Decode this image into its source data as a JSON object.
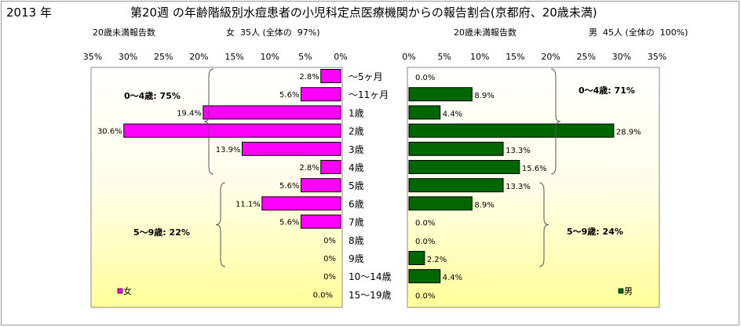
{
  "header": {
    "year_label": "2013 年",
    "title": "第20週 の年齢階級別水痘患者の小児科定点医療機関からの報告割合(京都府、20歳未満)"
  },
  "chart_data": [
    {
      "type": "bar",
      "panel": "female",
      "orientation": "horizontal",
      "direction": "right-to-left",
      "series_label": "20歳未満報告数",
      "summary": "女  35人 (全体の  97%)",
      "legend": "女",
      "color": "#ff00ff",
      "xlim": [
        0,
        35
      ],
      "ticks": [
        "35%",
        "30%",
        "25%",
        "20%",
        "15%",
        "10%",
        "5%",
        "0%"
      ],
      "tick_values": [
        35,
        30,
        25,
        20,
        15,
        10,
        5,
        0
      ],
      "categories": [
        "～5ヶ月",
        "～11ヶ月",
        "1歳",
        "2歳",
        "3歳",
        "4歳",
        "5歳",
        "6歳",
        "7歳",
        "8歳",
        "9歳",
        "10～14歳",
        "15～19歳"
      ],
      "values": [
        2.8,
        5.6,
        19.4,
        30.6,
        13.9,
        2.8,
        5.6,
        11.1,
        5.6,
        null,
        null,
        null,
        0.0
      ],
      "value_labels": [
        "2.8%",
        "5.6%",
        "19.4%",
        "30.6%",
        "13.9%",
        "2.8%",
        "5.6%",
        "11.1%",
        "5.6%",
        "0%",
        "0%",
        "0%",
        "0.0%"
      ],
      "annotations": [
        {
          "text": "0～4歳: 75%",
          "from": 0,
          "to": 5
        },
        {
          "text": "5～9歳: 22%",
          "from": 6,
          "to": 10
        }
      ]
    },
    {
      "type": "bar",
      "panel": "male",
      "orientation": "horizontal",
      "direction": "left-to-right",
      "series_label": "20歳未満報告数",
      "summary": "男  45人 (全体の  100%)",
      "legend": "男",
      "color": "#006600",
      "xlim": [
        0,
        35
      ],
      "ticks": [
        "0%",
        "5%",
        "10%",
        "15%",
        "20%",
        "25%",
        "30%",
        "35%"
      ],
      "tick_values": [
        0,
        5,
        10,
        15,
        20,
        25,
        30,
        35
      ],
      "categories": [
        "～5ヶ月",
        "～11ヶ月",
        "1歳",
        "2歳",
        "3歳",
        "4歳",
        "5歳",
        "6歳",
        "7歳",
        "8歳",
        "9歳",
        "10～14歳",
        "15～19歳"
      ],
      "values": [
        0.0,
        8.9,
        4.4,
        28.9,
        13.3,
        15.6,
        13.3,
        8.9,
        0.0,
        0.0,
        2.2,
        4.4,
        0.0
      ],
      "value_labels": [
        "0.0%",
        "8.9%",
        "4.4%",
        "28.9%",
        "13.3%",
        "15.6%",
        "13.3%",
        "8.9%",
        "0.0%",
        "0.0%",
        "2.2%",
        "4.4%",
        "0.0%"
      ],
      "annotations": [
        {
          "text": "0～4歳: 71%",
          "from": 0,
          "to": 5
        },
        {
          "text": "5～9歳: 24%",
          "from": 6,
          "to": 10
        }
      ]
    }
  ]
}
